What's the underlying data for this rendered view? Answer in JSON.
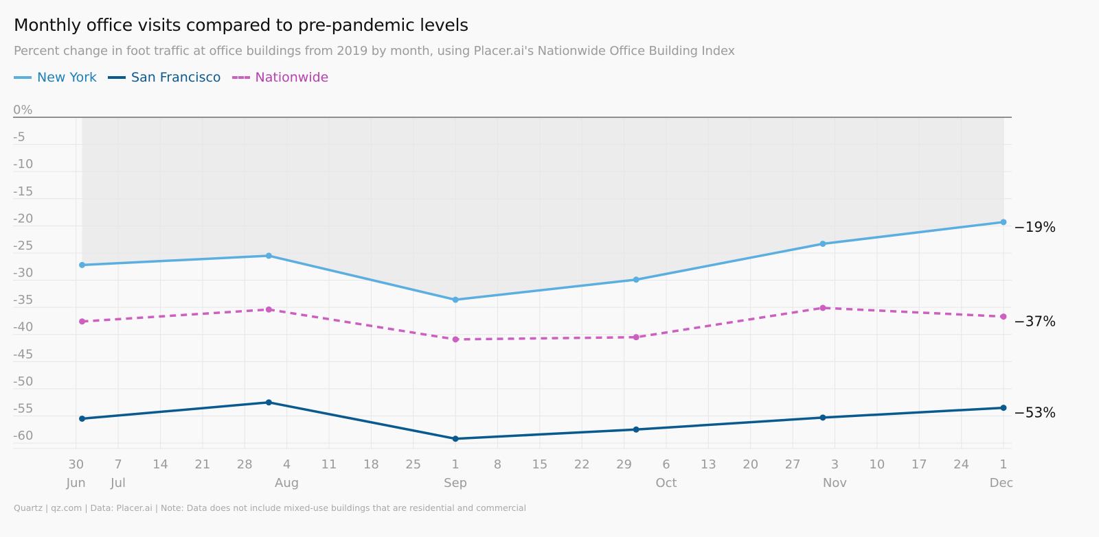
{
  "header": {
    "title": "Monthly office visits compared to pre-pandemic levels",
    "subtitle": "Percent change in foot traffic at office buildings from 2019 by month, using Placer.ai's Nationwide Office Building Index"
  },
  "legend": [
    {
      "label": "New York",
      "color": "#5aaee0",
      "dashed": false
    },
    {
      "label": "San Francisco",
      "color": "#0a5a8f",
      "dashed": false
    },
    {
      "label": "Nationwide",
      "color": "#cc5fc0",
      "dashed": true
    }
  ],
  "footer": {
    "source": "Quartz | qz.com | Data: Placer.ai | Note: Data does not include mixed-use buildings that are residential and commercial"
  },
  "chart_data": {
    "type": "line",
    "x_dates": [
      "2020-07-01",
      "2020-08-01",
      "2020-09-01",
      "2020-10-01",
      "2020-11-01",
      "2020-12-01"
    ],
    "series": [
      {
        "name": "New York",
        "color": "#5aaee0",
        "dashed": false,
        "values": [
          -27.2,
          -25.5,
          -33.6,
          -29.9,
          -23.3,
          -19.3
        ]
      },
      {
        "name": "Nationwide",
        "color": "#cc5fc0",
        "dashed": true,
        "values": [
          -37.6,
          -35.4,
          -40.9,
          -40.5,
          -35.1,
          -36.7
        ]
      },
      {
        "name": "San Francisco",
        "color": "#0a5a8f",
        "dashed": false,
        "values": [
          -55.5,
          -52.5,
          -59.2,
          -57.5,
          -55.3,
          -53.5
        ]
      }
    ],
    "end_labels": [
      "−19%",
      "−37%",
      "−53%"
    ],
    "y_ticks": [
      {
        "value": 0,
        "label": "0%"
      },
      {
        "value": -5,
        "label": "-5"
      },
      {
        "value": -10,
        "label": "-10"
      },
      {
        "value": -15,
        "label": "-15"
      },
      {
        "value": -20,
        "label": "-20"
      },
      {
        "value": -25,
        "label": "-25"
      },
      {
        "value": -30,
        "label": "-30"
      },
      {
        "value": -35,
        "label": "-35"
      },
      {
        "value": -40,
        "label": "-40"
      },
      {
        "value": -45,
        "label": "-45"
      },
      {
        "value": -50,
        "label": "-50"
      },
      {
        "value": -55,
        "label": "-55"
      },
      {
        "value": -60,
        "label": "-60"
      }
    ],
    "x_ticks": [
      {
        "date": "2020-06-30",
        "day": "30",
        "month": "Jun"
      },
      {
        "date": "2020-07-07",
        "day": "7",
        "month": "Jul"
      },
      {
        "date": "2020-07-14",
        "day": "14",
        "month": ""
      },
      {
        "date": "2020-07-21",
        "day": "21",
        "month": ""
      },
      {
        "date": "2020-07-28",
        "day": "28",
        "month": ""
      },
      {
        "date": "2020-08-04",
        "day": "4",
        "month": "Aug"
      },
      {
        "date": "2020-08-11",
        "day": "11",
        "month": ""
      },
      {
        "date": "2020-08-18",
        "day": "18",
        "month": ""
      },
      {
        "date": "2020-08-25",
        "day": "25",
        "month": ""
      },
      {
        "date": "2020-09-01",
        "day": "1",
        "month": "Sep"
      },
      {
        "date": "2020-09-08",
        "day": "8",
        "month": ""
      },
      {
        "date": "2020-09-15",
        "day": "15",
        "month": ""
      },
      {
        "date": "2020-09-22",
        "day": "22",
        "month": ""
      },
      {
        "date": "2020-09-29",
        "day": "29",
        "month": ""
      },
      {
        "date": "2020-10-06",
        "day": "6",
        "month": "Oct"
      },
      {
        "date": "2020-10-13",
        "day": "13",
        "month": ""
      },
      {
        "date": "2020-10-20",
        "day": "20",
        "month": ""
      },
      {
        "date": "2020-10-27",
        "day": "27",
        "month": ""
      },
      {
        "date": "2020-11-03",
        "day": "3",
        "month": "Nov"
      },
      {
        "date": "2020-11-10",
        "day": "10",
        "month": ""
      },
      {
        "date": "2020-11-17",
        "day": "17",
        "month": ""
      },
      {
        "date": "2020-11-24",
        "day": "24",
        "month": ""
      },
      {
        "date": "2020-12-01",
        "day": "1",
        "month": "Dec"
      }
    ],
    "ylim": [
      -61,
      0
    ],
    "xlim": [
      "2020-06-29",
      "2020-12-01"
    ],
    "grid": true,
    "shaded_band": {
      "from": 0,
      "to": "new_york_line",
      "color": "#ececec"
    },
    "legend_position": "top-left"
  }
}
